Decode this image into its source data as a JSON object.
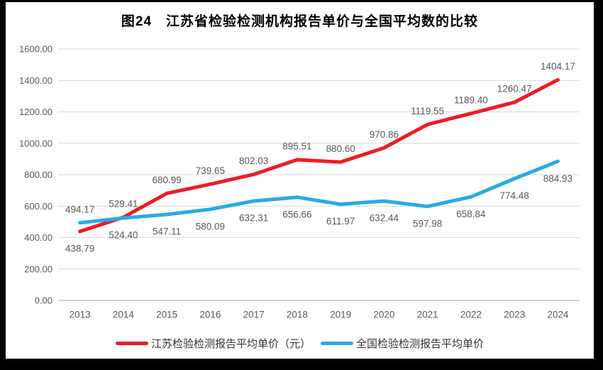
{
  "page": {
    "background_color": "#000000",
    "panel_color": "#ffffff"
  },
  "chart_data": {
    "type": "line",
    "title": "图24　江苏省检验检测机构报告单价与全国平均数的比较",
    "categories": [
      "2013",
      "2014",
      "2015",
      "2016",
      "2017",
      "2018",
      "2019",
      "2020",
      "2021",
      "2022",
      "2023",
      "2024"
    ],
    "series": [
      {
        "name": "江苏检验检测报告平均单价（元）",
        "color": "#ed1c24",
        "values": [
          438.79,
          529.41,
          680.99,
          739.65,
          802.03,
          895.51,
          880.6,
          970.86,
          1119.55,
          1189.4,
          1260.47,
          1404.17
        ]
      },
      {
        "name": "全国检验检测报告平均单价",
        "color": "#29abe2",
        "values": [
          494.17,
          524.4,
          547.11,
          580.09,
          632.31,
          656.66,
          611.97,
          632.44,
          597.98,
          658.84,
          774.48,
          884.93
        ]
      }
    ],
    "xlabel": "",
    "ylabel": "",
    "ylim": [
      0,
      1600
    ],
    "ytick_step": 200,
    "ytick_labels": [
      "0.00",
      "200.00",
      "400.00",
      "600.00",
      "800.00",
      "1000.00",
      "1200.00",
      "1400.00",
      "1600.00"
    ],
    "grid": true,
    "data_labels": true,
    "legend_position": "bottom",
    "colors": {
      "grid_line": "#d9d9d9",
      "zero_line": "#c6c6c6",
      "axis_text": "#595959",
      "data_label_text": "#595959",
      "title_text": "#000000"
    }
  }
}
